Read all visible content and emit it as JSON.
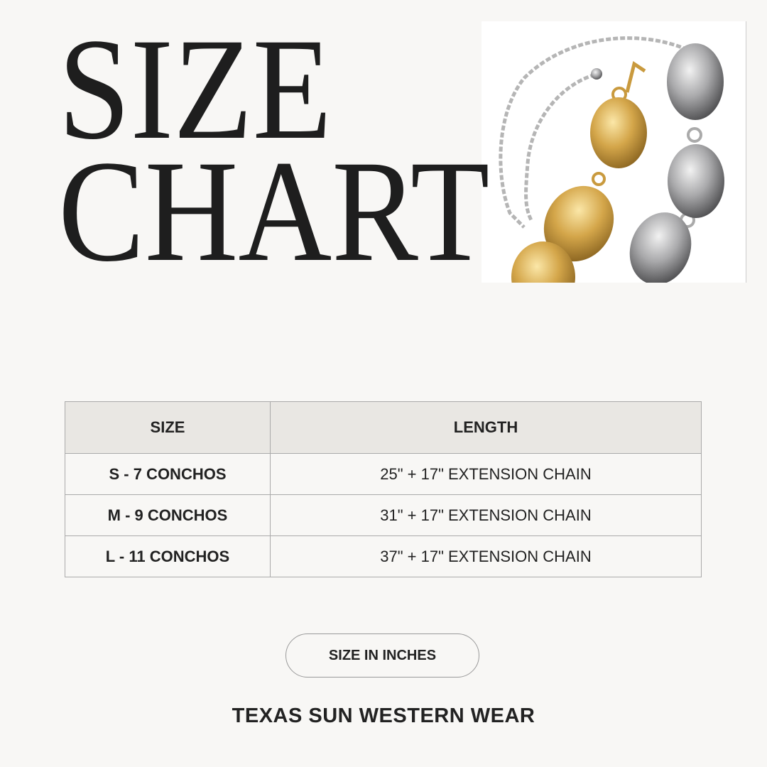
{
  "title": {
    "line1": "SIZE",
    "line2": "CHART"
  },
  "product_image": {
    "icon": "concho-belt-photo",
    "colors": {
      "gold": "#d4a64a",
      "silver": "#a9a9ab"
    }
  },
  "table": {
    "headers": [
      "SIZE",
      "LENGTH"
    ],
    "rows": [
      {
        "size": "S - 7 CONCHOS",
        "length": "25\" + 17\" EXTENSION CHAIN"
      },
      {
        "size": "M - 9 CONCHOS",
        "length": "31\" + 17\" EXTENSION CHAIN"
      },
      {
        "size": "L - 11 CONCHOS",
        "length": "37\" + 17\" EXTENSION CHAIN"
      }
    ]
  },
  "unit_badge": "SIZE IN INCHES",
  "brand": "TEXAS SUN WESTERN WEAR"
}
